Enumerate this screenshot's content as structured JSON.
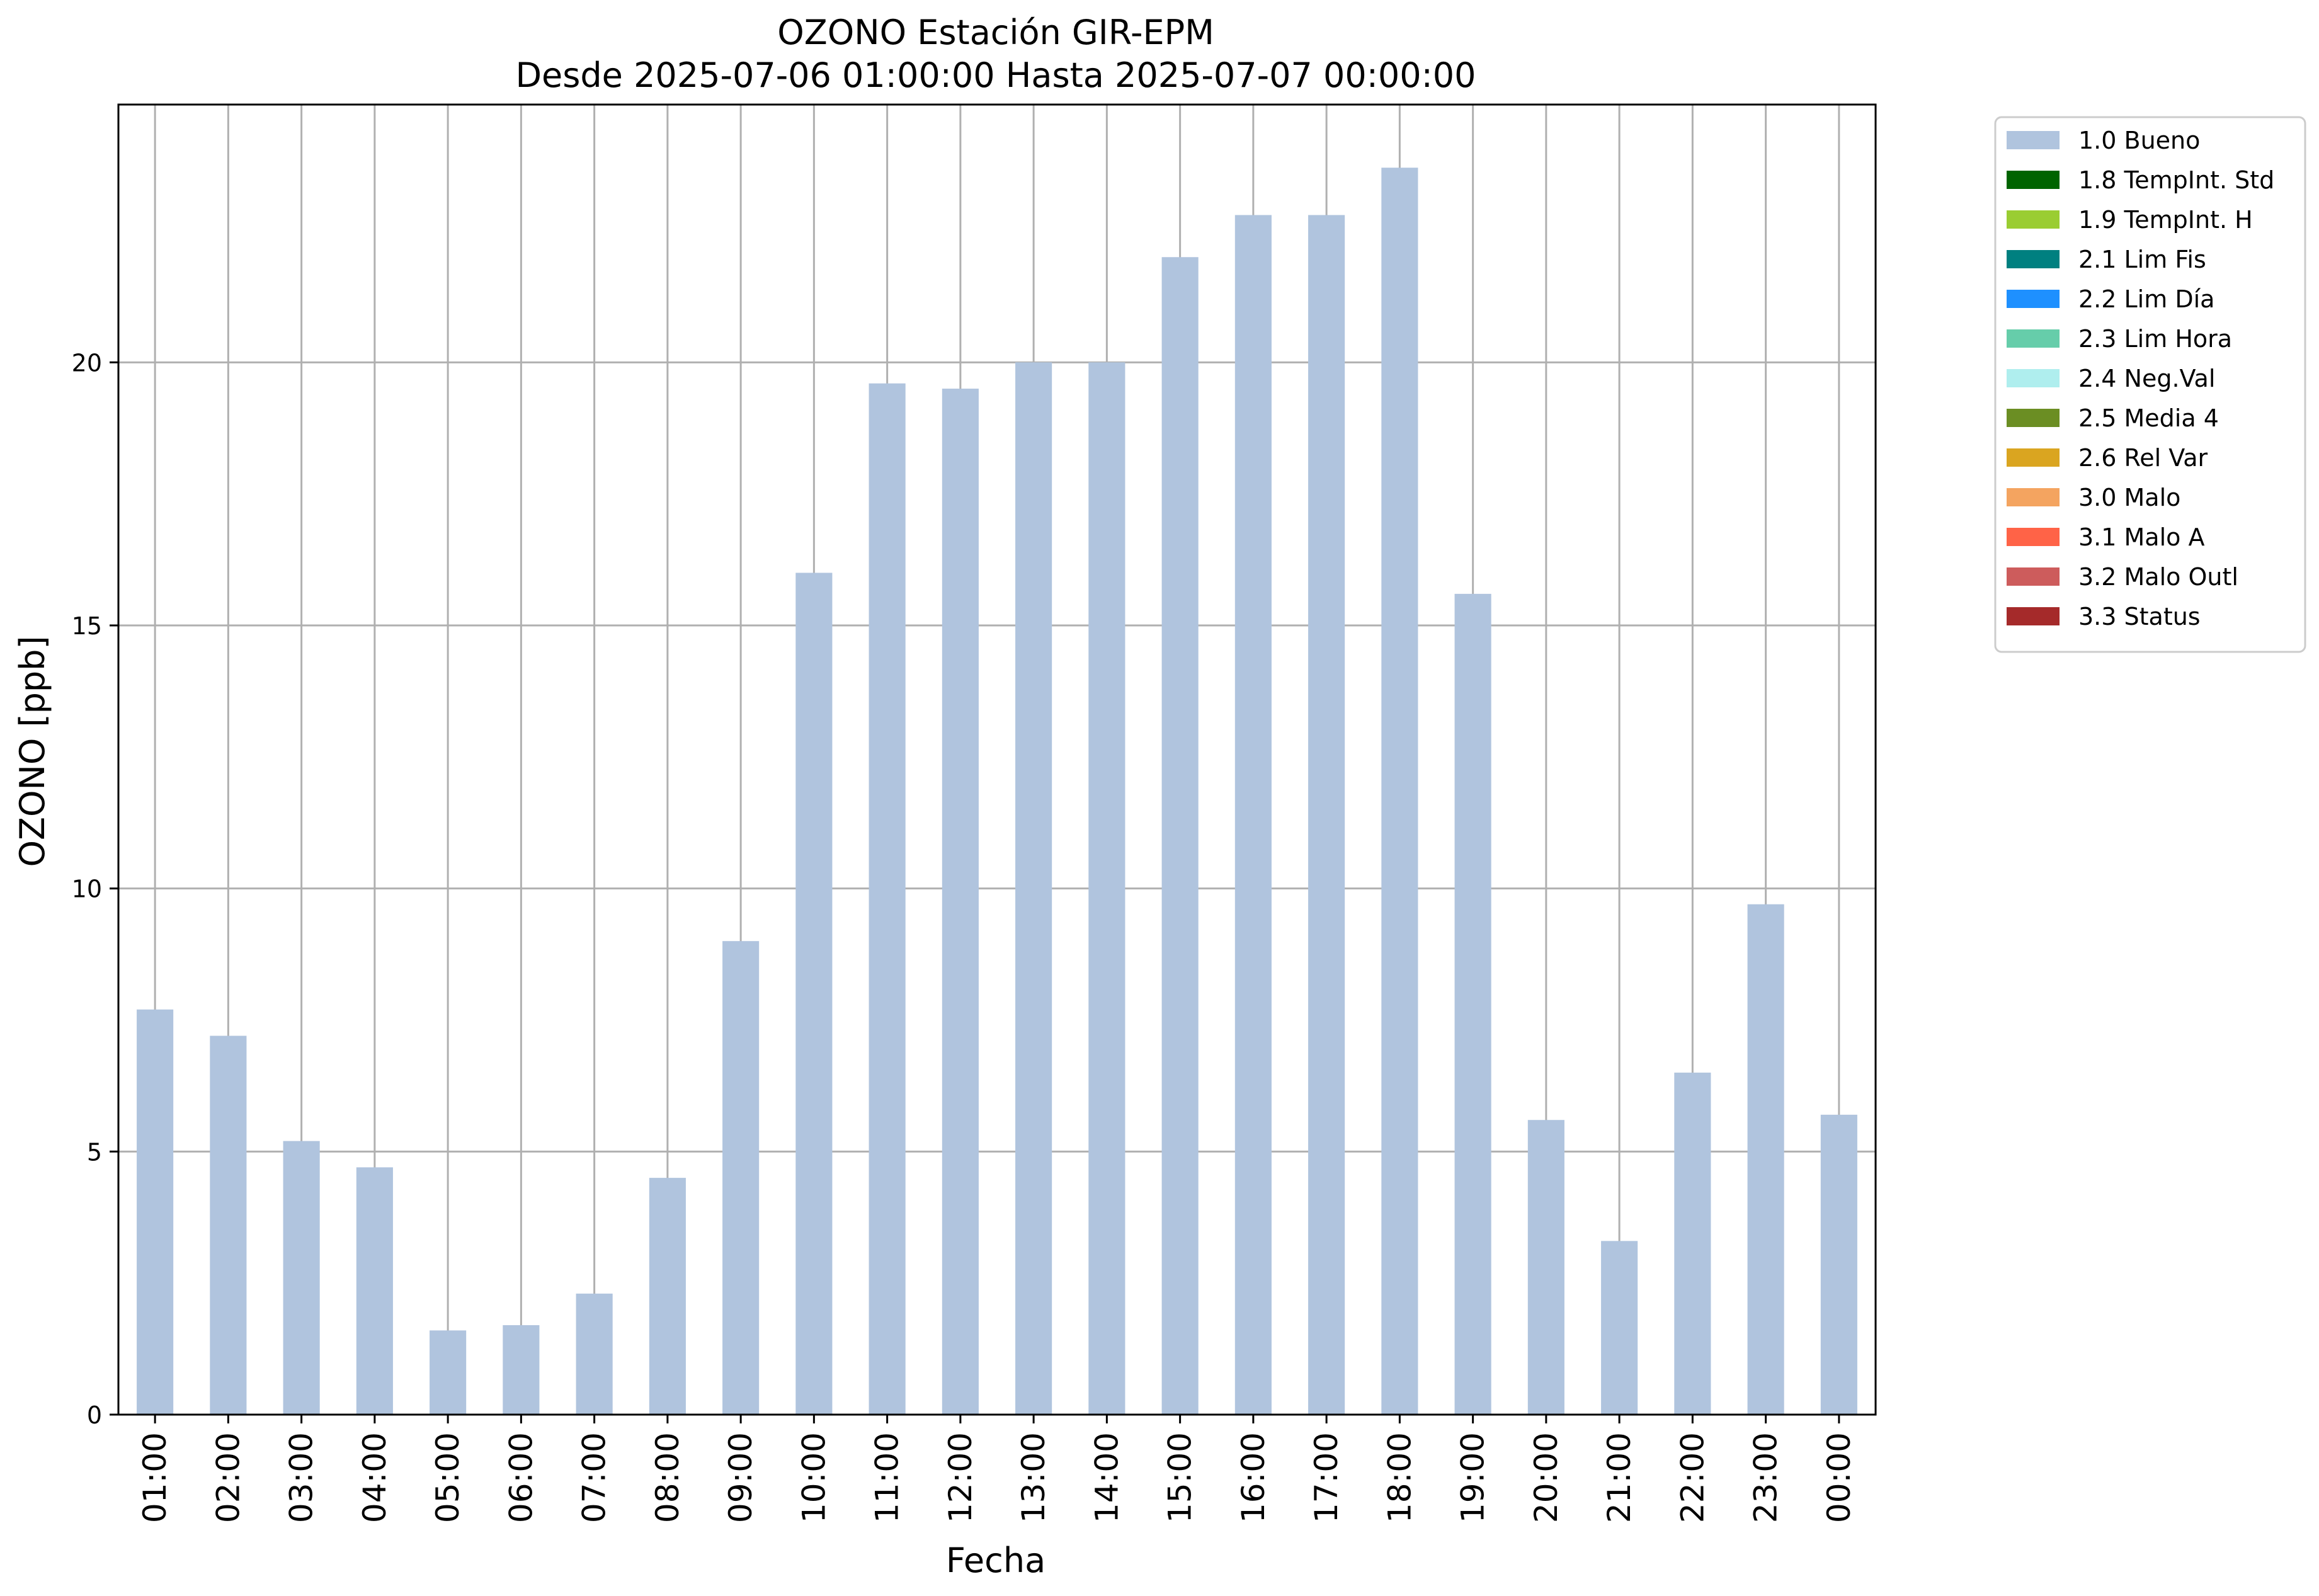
{
  "chart_data": {
    "type": "bar",
    "title": "OZONO Estación GIR-EPM",
    "subtitle": "Desde 2025-07-06 01:00:00 Hasta 2025-07-07 00:00:00",
    "xlabel": "Fecha",
    "ylabel": "OZONO [ppb]",
    "ylim": [
      0,
      24.9
    ],
    "yticks": [
      0,
      5,
      10,
      15,
      20
    ],
    "grid": true,
    "legend_position": "outside-top-right",
    "categories": [
      "01:00",
      "02:00",
      "03:00",
      "04:00",
      "05:00",
      "06:00",
      "07:00",
      "08:00",
      "09:00",
      "10:00",
      "11:00",
      "12:00",
      "13:00",
      "14:00",
      "15:00",
      "16:00",
      "17:00",
      "18:00",
      "19:00",
      "20:00",
      "21:00",
      "22:00",
      "23:00",
      "00:00"
    ],
    "series": [
      {
        "name": "1.0 Bueno",
        "color": "#b0c4de",
        "values": [
          7.7,
          7.2,
          5.2,
          4.7,
          1.6,
          1.7,
          2.3,
          4.5,
          9.0,
          16.0,
          19.6,
          19.5,
          20.0,
          20.0,
          22.0,
          22.8,
          22.8,
          23.7,
          15.6,
          5.6,
          3.3,
          6.5,
          9.7,
          5.7
        ]
      }
    ],
    "legend": [
      {
        "label": "1.0 Bueno",
        "color": "#b0c4de"
      },
      {
        "label": "1.8 TempInt. Std",
        "color": "#006400"
      },
      {
        "label": "1.9 TempInt. H",
        "color": "#9acd32"
      },
      {
        "label": "2.1 Lim Fis",
        "color": "#008080"
      },
      {
        "label": "2.2 Lim Día",
        "color": "#1e90ff"
      },
      {
        "label": "2.3 Lim Hora",
        "color": "#66cdaa"
      },
      {
        "label": "2.4 Neg.Val",
        "color": "#afeeee"
      },
      {
        "label": "2.5 Media 4",
        "color": "#6b8e23"
      },
      {
        "label": "2.6 Rel Var",
        "color": "#daa520"
      },
      {
        "label": "3.0 Malo",
        "color": "#f4a460"
      },
      {
        "label": "3.1 Malo A",
        "color": "#ff6347"
      },
      {
        "label": "3.2 Malo Outl",
        "color": "#cd5c5c"
      },
      {
        "label": "3.3 Status",
        "color": "#a52a2a"
      }
    ]
  }
}
